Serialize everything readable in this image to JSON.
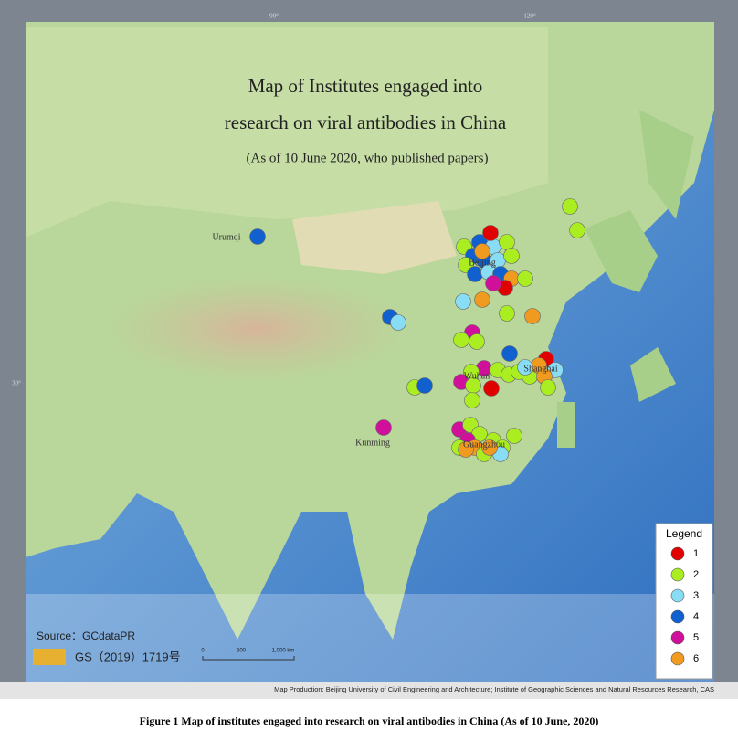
{
  "header": {
    "title_line1": "Map of Institutes engaged into",
    "title_line2": "research on viral antibodies in China",
    "subtitle": "(As of 10 June 2020, who published papers)"
  },
  "graticule": [
    "90°",
    "120°",
    "30°"
  ],
  "cities": [
    "Urumqi",
    "Beijing",
    "Wuhan",
    "Shanghai",
    "Kunming",
    "Guangzhou"
  ],
  "legend": {
    "title": "Legend",
    "items": [
      {
        "label": "1",
        "color": "#e00000"
      },
      {
        "label": "2",
        "color": "#aaee22"
      },
      {
        "label": "3",
        "color": "#88ddf5"
      },
      {
        "label": "4",
        "color": "#1060d0"
      },
      {
        "label": "5",
        "color": "#d0109a"
      },
      {
        "label": "6",
        "color": "#f09a20"
      }
    ]
  },
  "source": "Source：GCdataPR",
  "gs_number": "GS（2019）1719号",
  "scale": [
    "0",
    "500",
    "1,000 km"
  ],
  "production": "Map Production: Beijing University of Civil Engineering and Architecture; Institute of Geographic Sciences and Natural Resources Research, CAS",
  "caption": "Figure 1  Map of institutes engaged into research on viral antibodies in China (As of 10 June, 2020)"
}
